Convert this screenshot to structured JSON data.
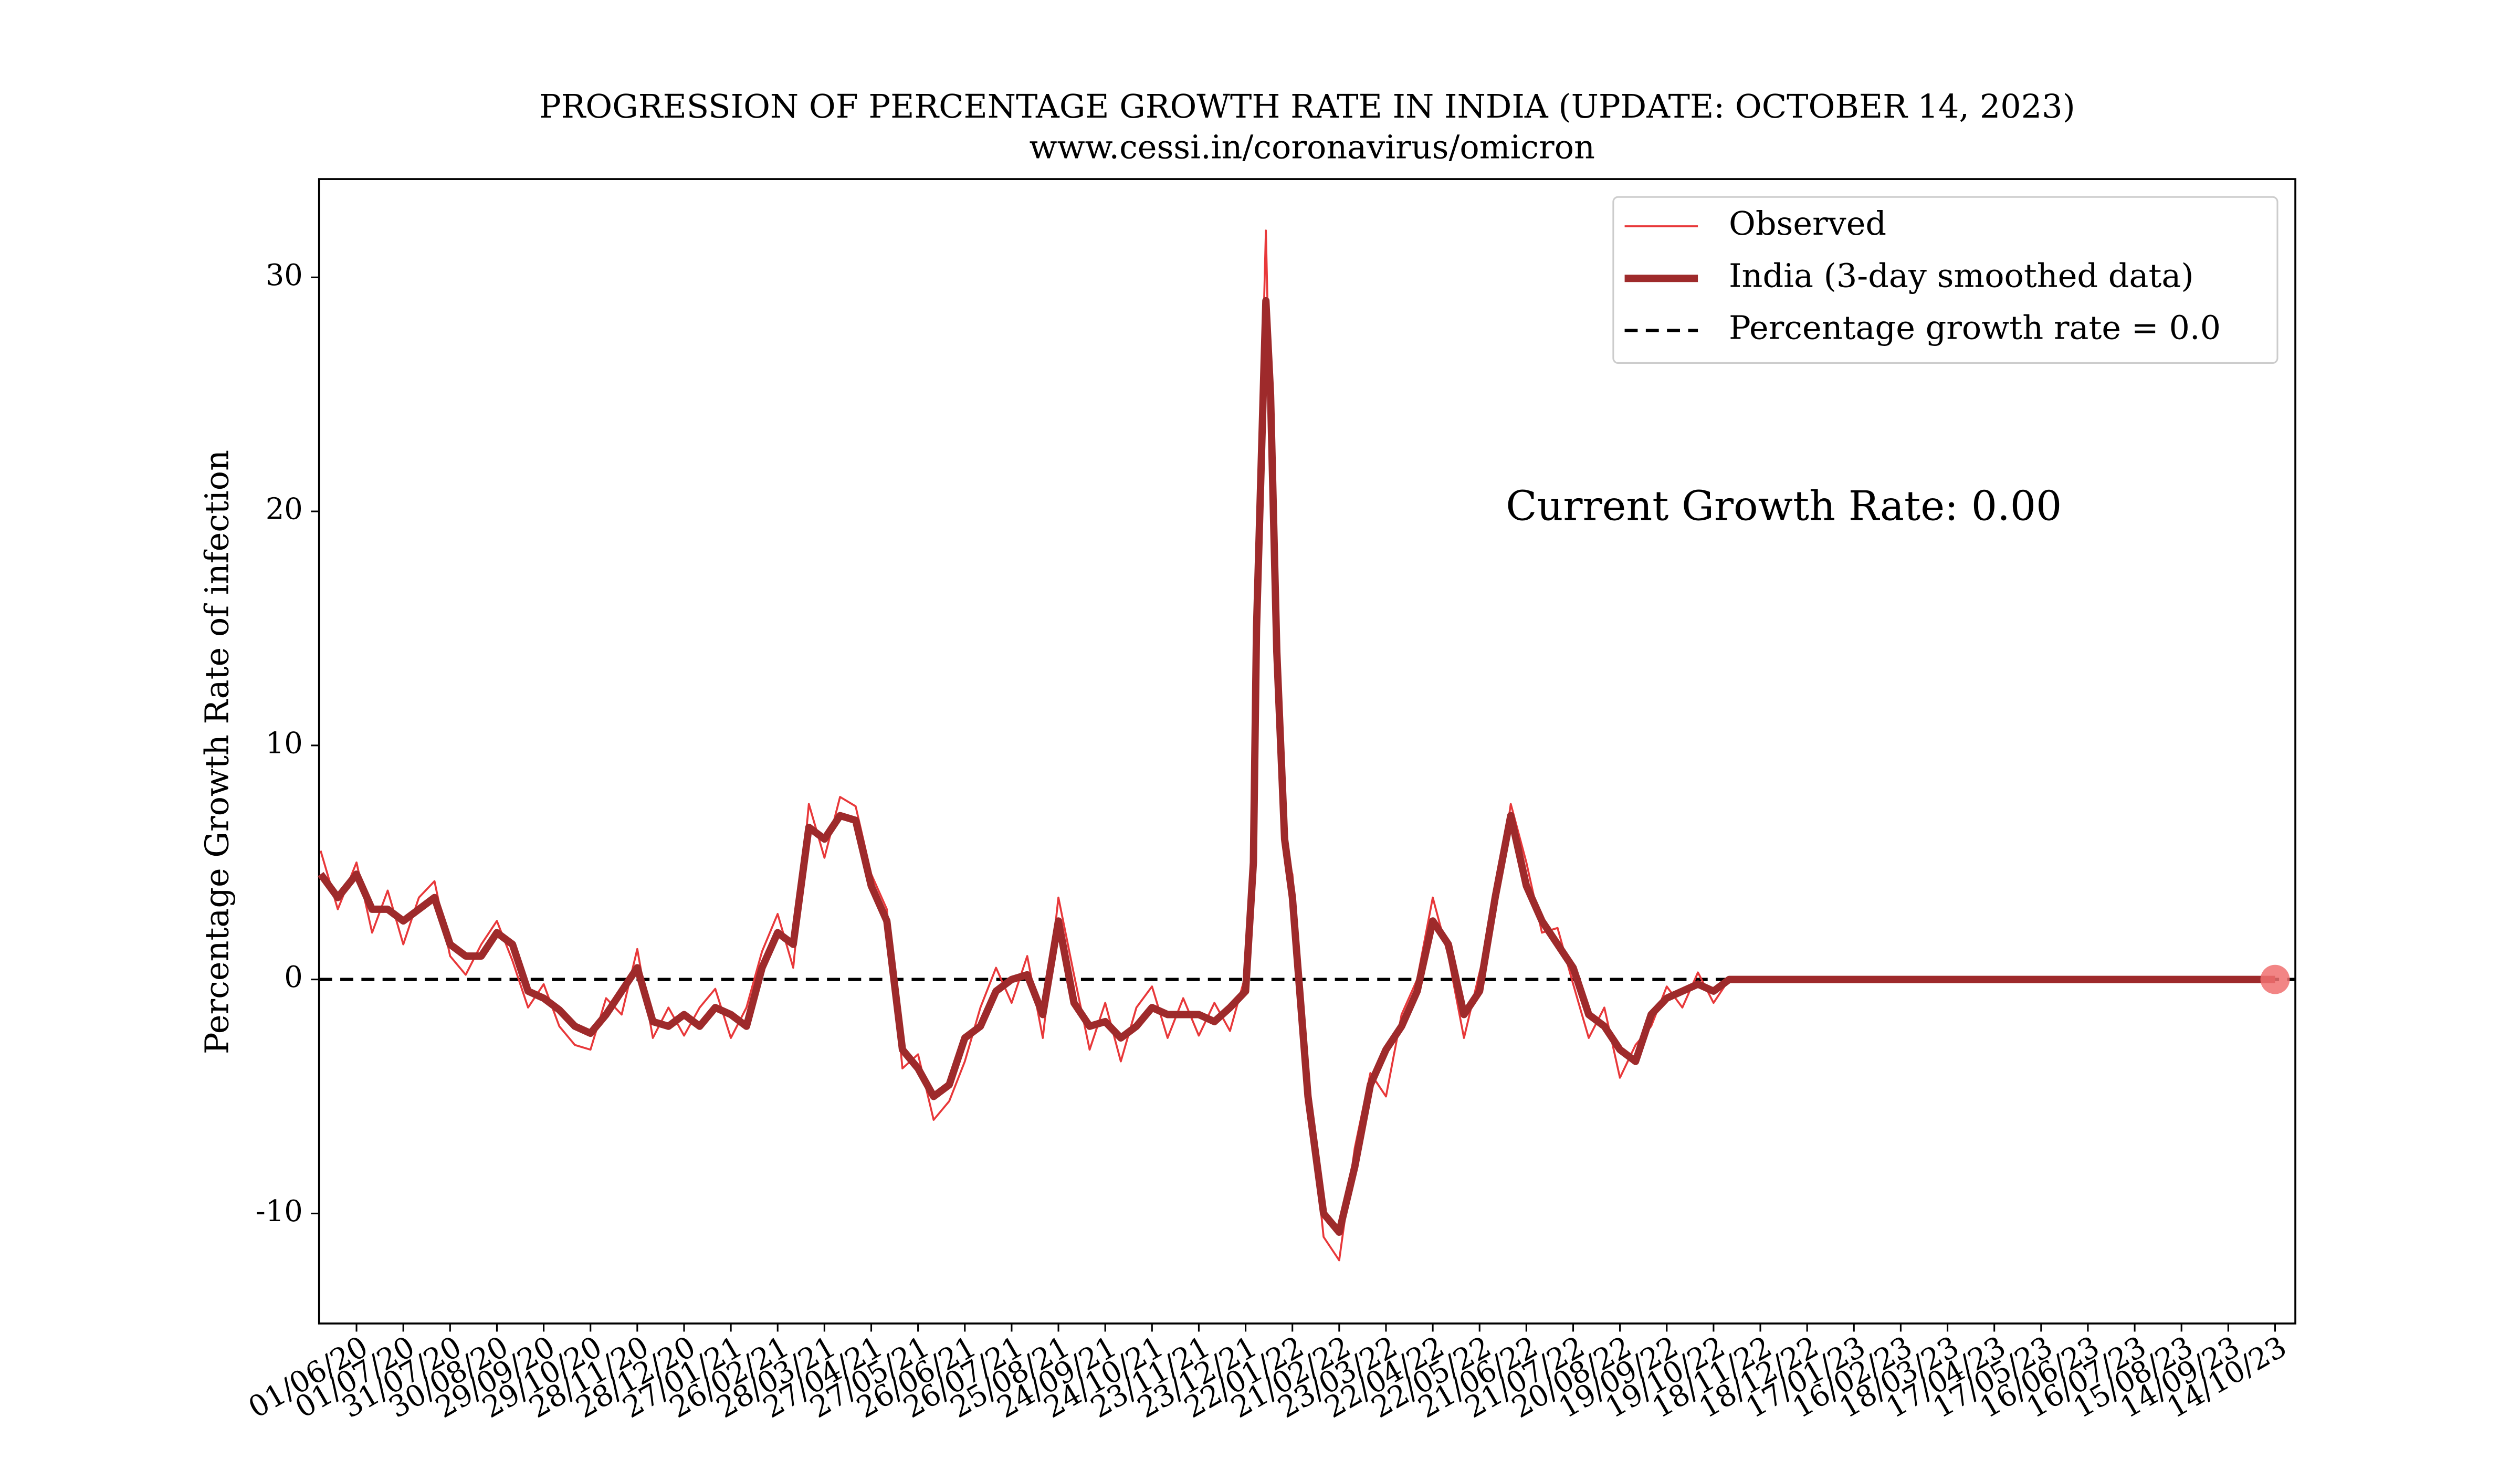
{
  "chart_data": {
    "type": "line",
    "title": "PROGRESSION OF PERCENTAGE GROWTH RATE IN INDIA (UPDATE: OCTOBER 14, 2023)",
    "subtitle": "www.cessi.in/coronavirus/omicron",
    "y_label": "Percentage Growth Rate of infection",
    "annotation": "Current Growth Rate: 0.00",
    "annotation_color": "#0000ff",
    "x": [
      "09/05/20",
      "20/05/20",
      "01/06/20",
      "11/06/20",
      "21/06/20",
      "01/07/20",
      "11/07/20",
      "21/07/20",
      "31/07/20",
      "10/08/20",
      "20/08/20",
      "30/08/20",
      "09/09/20",
      "19/09/20",
      "29/09/20",
      "09/10/20",
      "19/10/20",
      "29/10/20",
      "08/11/20",
      "18/11/20",
      "28/11/20",
      "08/12/20",
      "18/12/20",
      "28/12/20",
      "07/01/21",
      "17/01/21",
      "27/01/21",
      "06/02/21",
      "16/02/21",
      "26/02/21",
      "08/03/21",
      "18/03/21",
      "28/03/21",
      "07/04/21",
      "17/04/21",
      "27/04/21",
      "07/05/21",
      "17/05/21",
      "27/05/21",
      "06/06/21",
      "16/06/21",
      "26/06/21",
      "06/07/21",
      "16/07/21",
      "26/07/21",
      "05/08/21",
      "15/08/21",
      "25/08/21",
      "04/09/21",
      "14/09/21",
      "24/09/21",
      "04/10/21",
      "14/10/21",
      "24/10/21",
      "03/11/21",
      "13/11/21",
      "23/11/21",
      "03/12/21",
      "13/12/21",
      "23/12/21",
      "28/12/21",
      "30/12/21",
      "02/01/22",
      "05/01/22",
      "08/01/22",
      "12/01/22",
      "17/01/22",
      "22/01/22",
      "01/02/22",
      "11/02/22",
      "21/02/22",
      "03/03/22",
      "13/03/22",
      "23/03/22",
      "02/04/22",
      "12/04/22",
      "22/04/22",
      "02/05/22",
      "12/05/22",
      "22/05/22",
      "01/06/22",
      "11/06/22",
      "21/06/22",
      "01/07/22",
      "11/07/22",
      "21/07/22",
      "31/07/22",
      "10/08/22",
      "20/08/22",
      "30/08/22",
      "09/09/22",
      "19/09/22",
      "29/09/22",
      "09/10/22",
      "19/10/22",
      "29/10/22",
      "18/11/22",
      "18/12/22",
      "17/01/23",
      "16/02/23",
      "18/03/23",
      "17/04/23",
      "17/05/23",
      "16/06/23",
      "16/07/23",
      "15/08/23",
      "14/09/23",
      "14/10/23"
    ],
    "series": [
      {
        "name": "Observed",
        "color": "#e8383a",
        "width": 1.2,
        "values": [
          5.5,
          3,
          5,
          2,
          3.8,
          1.5,
          3.5,
          4.2,
          1,
          0.2,
          1.5,
          2.5,
          0.8,
          -1.2,
          -0.2,
          -2,
          -2.8,
          -3,
          -0.8,
          -1.5,
          1.3,
          -2.5,
          -1.2,
          -2.4,
          -1.2,
          -0.4,
          -2.5,
          -1.2,
          1.2,
          2.8,
          0.5,
          7.5,
          5.2,
          7.8,
          7.4,
          4.5,
          3,
          -3.8,
          -3.2,
          -6,
          -5.2,
          -3.5,
          -1.2,
          0.5,
          -1,
          1,
          -2.5,
          3.5,
          0.2,
          -3,
          -1,
          -3.5,
          -1.2,
          -0.3,
          -2.5,
          -0.8,
          -2.4,
          -1,
          -2.2,
          0.2,
          6.5,
          16,
          24,
          32,
          23,
          15.5,
          5.5,
          4.5,
          -4.5,
          -11,
          -12,
          -7.2,
          -4,
          -5,
          -1.5,
          0,
          3.5,
          1,
          -2.5,
          0.3,
          2.8,
          7.5,
          5,
          2,
          2.2,
          -0.2,
          -2.5,
          -1.2,
          -4.2,
          -2.8,
          -2,
          -0.3,
          -1.2,
          0.3,
          -1,
          0,
          0,
          0,
          0,
          0,
          0,
          0,
          0,
          0,
          0,
          0,
          0,
          0
        ]
      },
      {
        "name": "India (3-day smoothed data)",
        "color": "#9e2a2b",
        "width": 4.5,
        "values": [
          4.5,
          3.5,
          4.5,
          3,
          3,
          2.5,
          3,
          3.5,
          1.5,
          1,
          1,
          2,
          1.5,
          -0.5,
          -0.8,
          -1.3,
          -2,
          -2.3,
          -1.5,
          -0.5,
          0.5,
          -1.8,
          -2,
          -1.5,
          -2,
          -1.2,
          -1.5,
          -2,
          0.5,
          2,
          1.5,
          6.5,
          6,
          7,
          6.8,
          4,
          2.5,
          -3,
          -3.8,
          -5,
          -4.5,
          -2.5,
          -2,
          -0.5,
          0,
          0.2,
          -1.5,
          2.5,
          -1,
          -2,
          -1.8,
          -2.5,
          -2,
          -1.2,
          -1.5,
          -1.5,
          -1.5,
          -1.8,
          -1.2,
          -0.5,
          5,
          15,
          22,
          29,
          25,
          14,
          6,
          3.5,
          -5,
          -10,
          -10.8,
          -8,
          -4.5,
          -3,
          -2,
          -0.5,
          2.5,
          1.5,
          -1.5,
          -0.5,
          3.5,
          7,
          4,
          2.5,
          1.5,
          0.5,
          -1.5,
          -2,
          -3,
          -3.5,
          -1.5,
          -0.8,
          -0.5,
          -0.2,
          -0.5,
          0,
          0,
          0,
          0,
          0,
          0,
          0,
          0,
          0,
          0,
          0,
          0,
          0
        ]
      }
    ],
    "reference_line": {
      "name": "Percentage growth rate = 0.0",
      "value": 0,
      "color": "#000000",
      "style": "dashed"
    },
    "current_point": {
      "x": "14/10/23",
      "value": 0,
      "color": "#f07070"
    },
    "xlim": [
      "08/05/20",
      "27/10/23"
    ],
    "xticks": [
      "01/06/20",
      "01/07/20",
      "31/07/20",
      "30/08/20",
      "29/09/20",
      "29/10/20",
      "28/11/20",
      "28/12/20",
      "27/01/21",
      "26/02/21",
      "28/03/21",
      "27/04/21",
      "27/05/21",
      "26/06/21",
      "26/07/21",
      "25/08/21",
      "24/09/21",
      "24/10/21",
      "23/11/21",
      "23/12/21",
      "22/01/22",
      "21/02/22",
      "23/03/22",
      "22/04/22",
      "22/05/22",
      "21/06/22",
      "21/07/22",
      "20/08/22",
      "19/09/22",
      "19/10/22",
      "18/11/22",
      "18/12/22",
      "17/01/23",
      "16/02/23",
      "18/03/23",
      "17/04/23",
      "17/05/23",
      "16/06/23",
      "16/07/23",
      "15/08/23",
      "14/09/23",
      "14/10/23"
    ],
    "ylim": [
      -14.7,
      34.2
    ],
    "yticks": [
      -10,
      0,
      10,
      20,
      30
    ],
    "grid": false,
    "legend": "upper right"
  }
}
